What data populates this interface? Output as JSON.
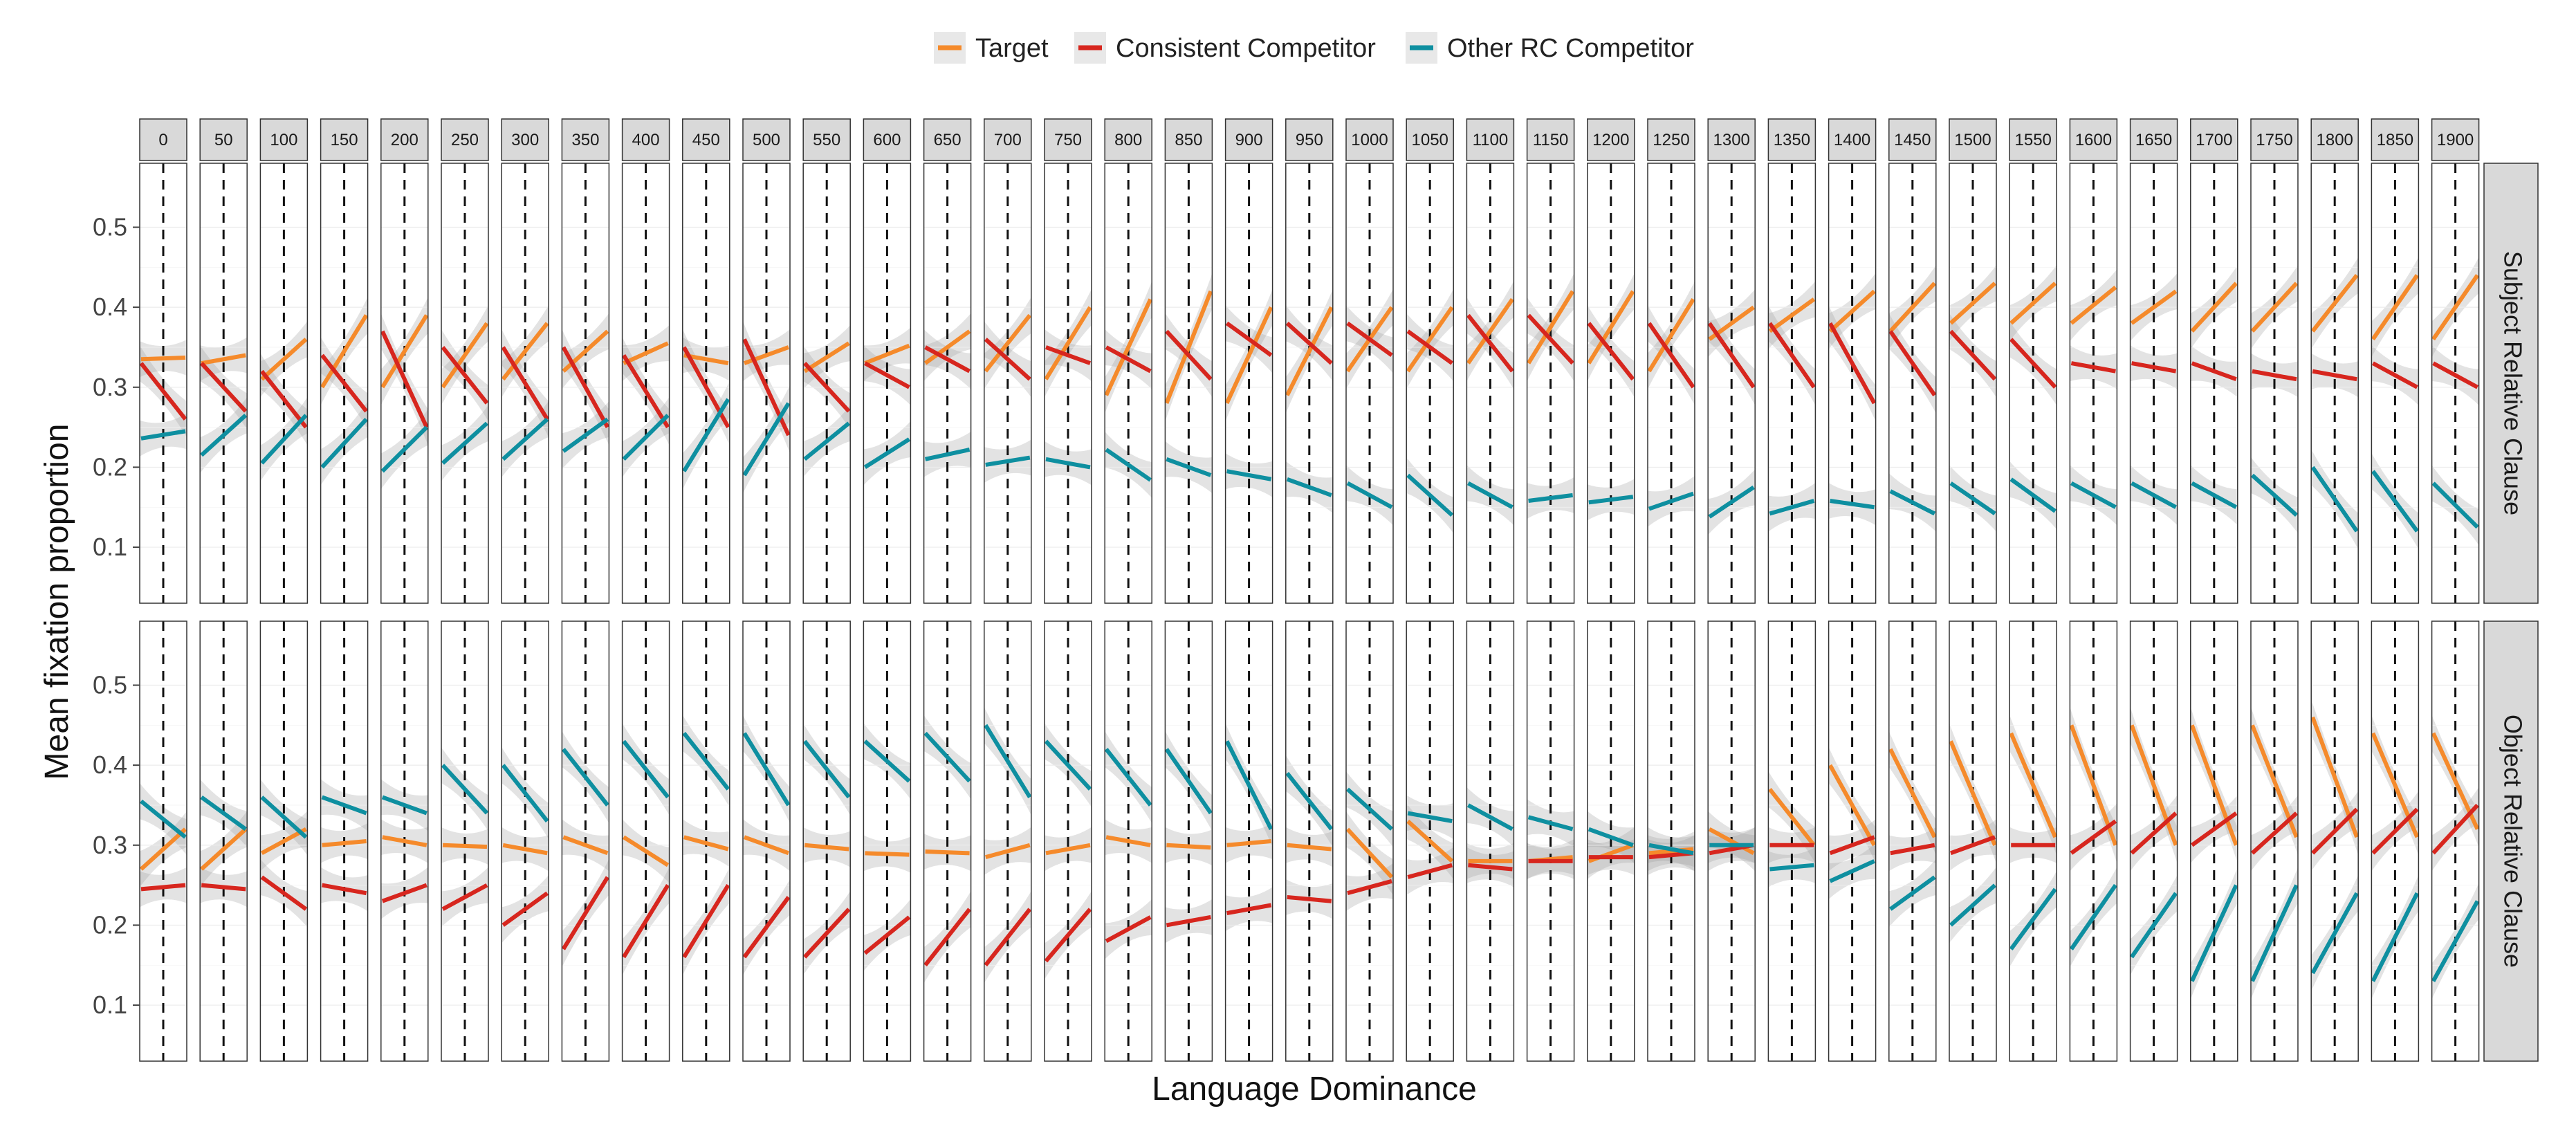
{
  "chart_data": {
    "type": "line",
    "xlabel": "Language Dominance",
    "ylabel": "Mean fixation proportion",
    "ylim": [
      0.03,
      0.58
    ],
    "yticks": [
      0.1,
      0.2,
      0.3,
      0.4,
      0.5
    ],
    "ytick_labels": [
      "0.1",
      "0.2",
      "0.3",
      "0.4",
      "0.5"
    ],
    "legend_position": "top",
    "legend": [
      "Target",
      "Consistent Competitor",
      "Other RC Competitor"
    ],
    "colors": {
      "Target": "#F58A2B",
      "Consistent Competitor": "#D7261E",
      "Other RC Competitor": "#0E8FA0"
    },
    "panel_labels": [
      "0",
      "50",
      "100",
      "150",
      "200",
      "250",
      "300",
      "350",
      "400",
      "450",
      "500",
      "550",
      "600",
      "650",
      "700",
      "750",
      "800",
      "850",
      "900",
      "950",
      "1000",
      "1050",
      "1100",
      "1150",
      "1200",
      "1250",
      "1300",
      "1350",
      "1400",
      "1450",
      "1500",
      "1550",
      "1600",
      "1650",
      "1700",
      "1750",
      "1800",
      "1850",
      "1900"
    ],
    "rows": [
      "Subject Relative Clause",
      "Object Relative Clause"
    ],
    "grid": true,
    "segment_note": "each panel shows a short fitted line per series; values are [start, end] fixation proportions",
    "subject": {
      "Target": [
        [
          0.335,
          0.337
        ],
        [
          0.33,
          0.34
        ],
        [
          0.31,
          0.36
        ],
        [
          0.3,
          0.39
        ],
        [
          0.3,
          0.39
        ],
        [
          0.3,
          0.38
        ],
        [
          0.31,
          0.38
        ],
        [
          0.32,
          0.37
        ],
        [
          0.33,
          0.355
        ],
        [
          0.34,
          0.33
        ],
        [
          0.33,
          0.35
        ],
        [
          0.32,
          0.355
        ],
        [
          0.33,
          0.352
        ],
        [
          0.33,
          0.37
        ],
        [
          0.32,
          0.39
        ],
        [
          0.31,
          0.4
        ],
        [
          0.29,
          0.41
        ],
        [
          0.28,
          0.42
        ],
        [
          0.28,
          0.4
        ],
        [
          0.29,
          0.4
        ],
        [
          0.32,
          0.4
        ],
        [
          0.32,
          0.4
        ],
        [
          0.33,
          0.41
        ],
        [
          0.33,
          0.42
        ],
        [
          0.33,
          0.42
        ],
        [
          0.32,
          0.41
        ],
        [
          0.36,
          0.4
        ],
        [
          0.37,
          0.41
        ],
        [
          0.37,
          0.42
        ],
        [
          0.37,
          0.43
        ],
        [
          0.38,
          0.43
        ],
        [
          0.38,
          0.43
        ],
        [
          0.38,
          0.425
        ],
        [
          0.38,
          0.42
        ],
        [
          0.37,
          0.43
        ],
        [
          0.37,
          0.43
        ],
        [
          0.37,
          0.44
        ],
        [
          0.36,
          0.44
        ],
        [
          0.36,
          0.44
        ]
      ],
      "Consistent Competitor": [
        [
          0.33,
          0.26
        ],
        [
          0.33,
          0.27
        ],
        [
          0.32,
          0.25
        ],
        [
          0.34,
          0.27
        ],
        [
          0.37,
          0.25
        ],
        [
          0.35,
          0.28
        ],
        [
          0.35,
          0.26
        ],
        [
          0.35,
          0.25
        ],
        [
          0.34,
          0.25
        ],
        [
          0.35,
          0.25
        ],
        [
          0.36,
          0.24
        ],
        [
          0.33,
          0.27
        ],
        [
          0.33,
          0.3
        ],
        [
          0.35,
          0.32
        ],
        [
          0.36,
          0.31
        ],
        [
          0.35,
          0.33
        ],
        [
          0.35,
          0.32
        ],
        [
          0.37,
          0.31
        ],
        [
          0.38,
          0.34
        ],
        [
          0.38,
          0.33
        ],
        [
          0.38,
          0.34
        ],
        [
          0.37,
          0.33
        ],
        [
          0.39,
          0.32
        ],
        [
          0.39,
          0.33
        ],
        [
          0.38,
          0.31
        ],
        [
          0.38,
          0.3
        ],
        [
          0.38,
          0.3
        ],
        [
          0.38,
          0.3
        ],
        [
          0.38,
          0.28
        ],
        [
          0.37,
          0.29
        ],
        [
          0.37,
          0.31
        ],
        [
          0.36,
          0.3
        ],
        [
          0.33,
          0.32
        ],
        [
          0.33,
          0.32
        ],
        [
          0.33,
          0.31
        ],
        [
          0.32,
          0.31
        ],
        [
          0.32,
          0.31
        ],
        [
          0.33,
          0.3
        ],
        [
          0.33,
          0.3
        ]
      ],
      "Other RC Competitor": [
        [
          0.236,
          0.245
        ],
        [
          0.215,
          0.265
        ],
        [
          0.205,
          0.265
        ],
        [
          0.2,
          0.26
        ],
        [
          0.195,
          0.25
        ],
        [
          0.205,
          0.255
        ],
        [
          0.21,
          0.26
        ],
        [
          0.22,
          0.26
        ],
        [
          0.21,
          0.265
        ],
        [
          0.195,
          0.285
        ],
        [
          0.19,
          0.28
        ],
        [
          0.21,
          0.255
        ],
        [
          0.2,
          0.235
        ],
        [
          0.21,
          0.222
        ],
        [
          0.203,
          0.212
        ],
        [
          0.21,
          0.2
        ],
        [
          0.222,
          0.184
        ],
        [
          0.21,
          0.19
        ],
        [
          0.195,
          0.185
        ],
        [
          0.185,
          0.165
        ],
        [
          0.18,
          0.15
        ],
        [
          0.19,
          0.14
        ],
        [
          0.18,
          0.15
        ],
        [
          0.158,
          0.165
        ],
        [
          0.156,
          0.163
        ],
        [
          0.148,
          0.167
        ],
        [
          0.138,
          0.175
        ],
        [
          0.142,
          0.158
        ],
        [
          0.158,
          0.15
        ],
        [
          0.17,
          0.142
        ],
        [
          0.18,
          0.142
        ],
        [
          0.185,
          0.145
        ],
        [
          0.18,
          0.15
        ],
        [
          0.18,
          0.15
        ],
        [
          0.18,
          0.15
        ],
        [
          0.19,
          0.14
        ],
        [
          0.2,
          0.12
        ],
        [
          0.195,
          0.12
        ],
        [
          0.18,
          0.125
        ]
      ]
    },
    "object": {
      "Target": [
        [
          0.27,
          0.32
        ],
        [
          0.27,
          0.32
        ],
        [
          0.29,
          0.32
        ],
        [
          0.3,
          0.305
        ],
        [
          0.31,
          0.3
        ],
        [
          0.3,
          0.298
        ],
        [
          0.3,
          0.29
        ],
        [
          0.31,
          0.29
        ],
        [
          0.31,
          0.275
        ],
        [
          0.31,
          0.295
        ],
        [
          0.31,
          0.29
        ],
        [
          0.3,
          0.295
        ],
        [
          0.29,
          0.288
        ],
        [
          0.292,
          0.29
        ],
        [
          0.285,
          0.3
        ],
        [
          0.29,
          0.3
        ],
        [
          0.31,
          0.3
        ],
        [
          0.3,
          0.297
        ],
        [
          0.3,
          0.305
        ],
        [
          0.3,
          0.295
        ],
        [
          0.32,
          0.26
        ],
        [
          0.33,
          0.28
        ],
        [
          0.28,
          0.28
        ],
        [
          0.28,
          0.285
        ],
        [
          0.28,
          0.3
        ],
        [
          0.29,
          0.295
        ],
        [
          0.32,
          0.29
        ],
        [
          0.37,
          0.3
        ],
        [
          0.4,
          0.3
        ],
        [
          0.42,
          0.31
        ],
        [
          0.43,
          0.3
        ],
        [
          0.44,
          0.31
        ],
        [
          0.45,
          0.3
        ],
        [
          0.45,
          0.3
        ],
        [
          0.45,
          0.3
        ],
        [
          0.45,
          0.31
        ],
        [
          0.46,
          0.31
        ],
        [
          0.44,
          0.31
        ],
        [
          0.44,
          0.32
        ]
      ],
      "Consistent Competitor": [
        [
          0.245,
          0.25
        ],
        [
          0.25,
          0.245
        ],
        [
          0.26,
          0.22
        ],
        [
          0.25,
          0.24
        ],
        [
          0.23,
          0.25
        ],
        [
          0.22,
          0.25
        ],
        [
          0.2,
          0.24
        ],
        [
          0.17,
          0.26
        ],
        [
          0.16,
          0.25
        ],
        [
          0.16,
          0.25
        ],
        [
          0.16,
          0.235
        ],
        [
          0.16,
          0.22
        ],
        [
          0.165,
          0.21
        ],
        [
          0.15,
          0.22
        ],
        [
          0.15,
          0.22
        ],
        [
          0.155,
          0.22
        ],
        [
          0.18,
          0.21
        ],
        [
          0.2,
          0.21
        ],
        [
          0.215,
          0.225
        ],
        [
          0.235,
          0.23
        ],
        [
          0.24,
          0.255
        ],
        [
          0.26,
          0.275
        ],
        [
          0.275,
          0.27
        ],
        [
          0.28,
          0.28
        ],
        [
          0.285,
          0.285
        ],
        [
          0.285,
          0.29
        ],
        [
          0.29,
          0.3
        ],
        [
          0.3,
          0.3
        ],
        [
          0.29,
          0.31
        ],
        [
          0.29,
          0.3
        ],
        [
          0.29,
          0.31
        ],
        [
          0.3,
          0.3
        ],
        [
          0.29,
          0.33
        ],
        [
          0.29,
          0.34
        ],
        [
          0.3,
          0.34
        ],
        [
          0.29,
          0.34
        ],
        [
          0.29,
          0.345
        ],
        [
          0.29,
          0.345
        ],
        [
          0.29,
          0.35
        ]
      ],
      "Other RC Competitor": [
        [
          0.355,
          0.31
        ],
        [
          0.36,
          0.32
        ],
        [
          0.36,
          0.31
        ],
        [
          0.36,
          0.34
        ],
        [
          0.36,
          0.34
        ],
        [
          0.4,
          0.34
        ],
        [
          0.4,
          0.33
        ],
        [
          0.42,
          0.35
        ],
        [
          0.43,
          0.36
        ],
        [
          0.44,
          0.37
        ],
        [
          0.44,
          0.35
        ],
        [
          0.43,
          0.36
        ],
        [
          0.43,
          0.38
        ],
        [
          0.44,
          0.38
        ],
        [
          0.45,
          0.36
        ],
        [
          0.43,
          0.37
        ],
        [
          0.42,
          0.35
        ],
        [
          0.42,
          0.34
        ],
        [
          0.43,
          0.32
        ],
        [
          0.39,
          0.32
        ],
        [
          0.37,
          0.32
        ],
        [
          0.34,
          0.33
        ],
        [
          0.35,
          0.32
        ],
        [
          0.335,
          0.32
        ],
        [
          0.32,
          0.3
        ],
        [
          0.3,
          0.29
        ],
        [
          0.3,
          0.3
        ],
        [
          0.27,
          0.275
        ],
        [
          0.255,
          0.28
        ],
        [
          0.22,
          0.26
        ],
        [
          0.2,
          0.25
        ],
        [
          0.17,
          0.245
        ],
        [
          0.17,
          0.25
        ],
        [
          0.16,
          0.24
        ],
        [
          0.13,
          0.25
        ],
        [
          0.13,
          0.25
        ],
        [
          0.14,
          0.24
        ],
        [
          0.13,
          0.24
        ],
        [
          0.13,
          0.23
        ]
      ]
    }
  }
}
